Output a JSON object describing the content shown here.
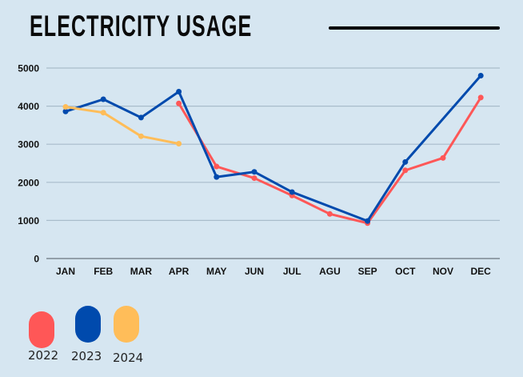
{
  "header": {
    "title": "ELECTRICITY USAGE"
  },
  "colors": {
    "background": "#d6e6f1",
    "grid": "#a9bccb",
    "axis": "#7b8791",
    "2022": "#ff5757",
    "2023": "#004aad",
    "2024": "#ffbd59"
  },
  "chart_data": {
    "type": "line",
    "title": "ELECTRICITY USAGE",
    "xlabel": "",
    "ylabel": "",
    "categories": [
      "JAN",
      "FEB",
      "MAR",
      "APR",
      "MAY",
      "JUN",
      "JUL",
      "AGU",
      "SEP",
      "OCT",
      "NOV",
      "DEC"
    ],
    "ylim": [
      0,
      5000
    ],
    "yticks": [
      0,
      1000,
      2000,
      3000,
      4000,
      5000
    ],
    "grid": true,
    "legend": "bottom-left",
    "series": [
      {
        "name": "2022",
        "color": "#ff5757",
        "values": [
          null,
          null,
          null,
          4070,
          2415,
          2110,
          1655,
          1170,
          930,
          2315,
          2640,
          4225
        ]
      },
      {
        "name": "2023",
        "color": "#004aad",
        "values": [
          3860,
          4180,
          3700,
          4380,
          2140,
          2275,
          1745,
          null,
          985,
          2535,
          null,
          4800
        ]
      },
      {
        "name": "2024",
        "color": "#ffbd59",
        "values": [
          3980,
          3830,
          3210,
          3015,
          null,
          null,
          null,
          null,
          null,
          null,
          null,
          null
        ]
      }
    ]
  },
  "legend": [
    {
      "label": "2022",
      "color": "#ff5757"
    },
    {
      "label": "2023",
      "color": "#004aad"
    },
    {
      "label": "2024",
      "color": "#ffbd59"
    }
  ]
}
